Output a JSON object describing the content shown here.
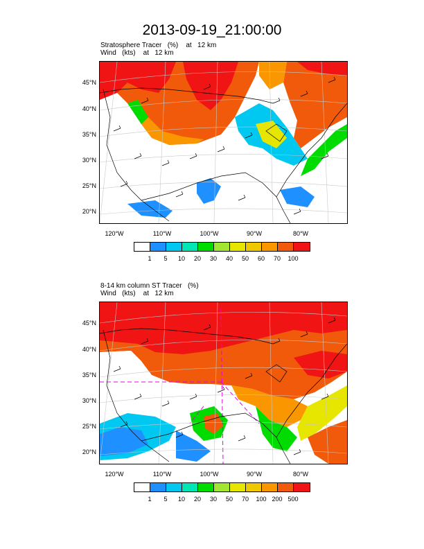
{
  "title": "2013-09-19_21:00:00",
  "colors": [
    "#ffffff",
    "#1e90ff",
    "#00c8f0",
    "#00e6b4",
    "#00dc00",
    "#a0e632",
    "#e6e600",
    "#f0c800",
    "#fa9600",
    "#f05a0a",
    "#f01414"
  ],
  "panels": [
    {
      "subtitle_line1": "Stratosphere Tracer   (%)    at   12 km",
      "subtitle_line2": "Wind   (kts)    at   12 km",
      "lat_labels": [
        "45°N",
        "40°N",
        "35°N",
        "30°N",
        "25°N",
        "20°N"
      ],
      "lon_labels": [
        "120°W",
        "110°W",
        "100°W",
        "90°W",
        "80°W"
      ],
      "colorbar_labels": [
        "1",
        "5",
        "10",
        "20",
        "30",
        "40",
        "50",
        "60",
        "70",
        "100"
      ]
    },
    {
      "subtitle_line1": "8-14 km column ST Tracer   (%)",
      "subtitle_line2": "Wind   (kts)    at   12 km",
      "lat_labels": [
        "45°N",
        "40°N",
        "35°N",
        "30°N",
        "25°N",
        "20°N"
      ],
      "lon_labels": [
        "120°W",
        "110°W",
        "100°W",
        "90°W",
        "80°W"
      ],
      "colorbar_labels": [
        "1",
        "5",
        "10",
        "20",
        "30",
        "50",
        "70",
        "100",
        "200",
        "500"
      ]
    }
  ]
}
